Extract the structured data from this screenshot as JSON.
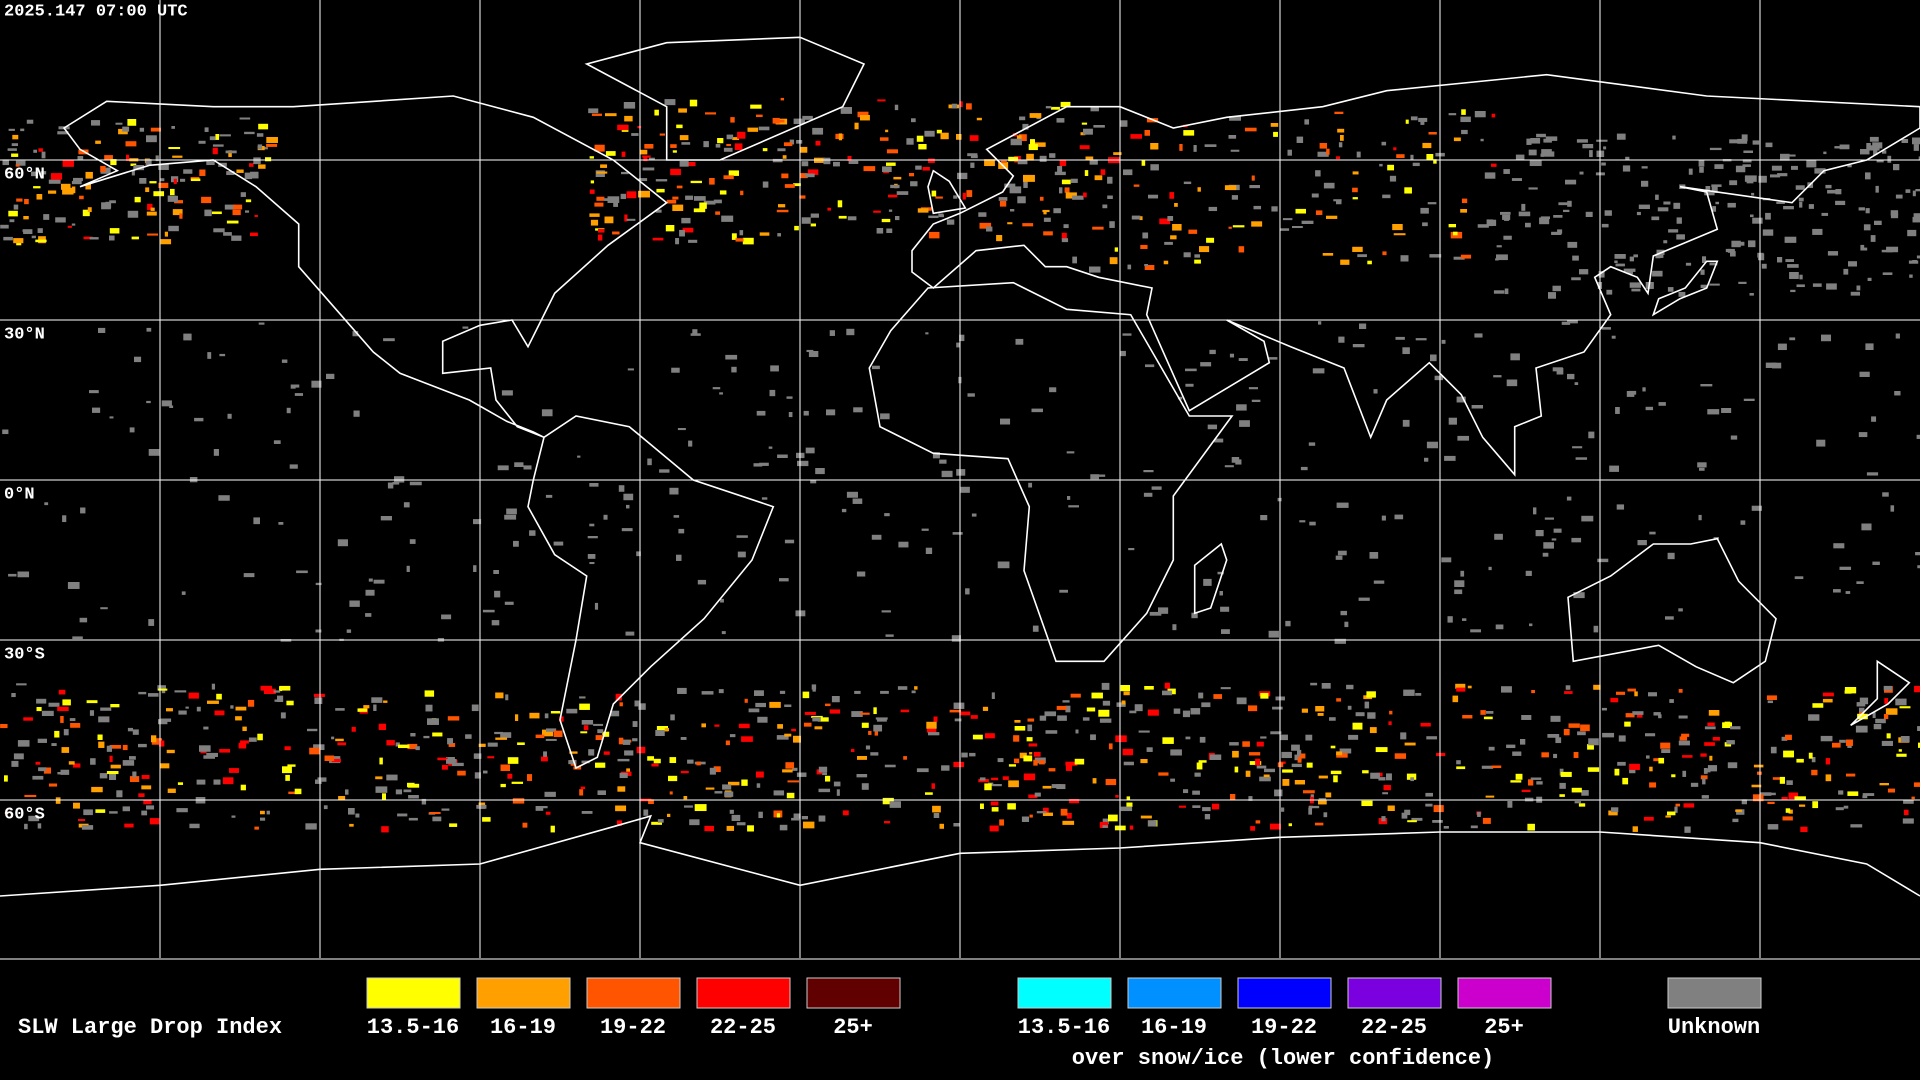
{
  "header": {
    "timestamp": "2025.147 07:00 UTC"
  },
  "map": {
    "lat_labels": [
      "60°N",
      "30°N",
      "0°N",
      "30°S",
      "60°S"
    ]
  },
  "legend": {
    "title": "SLW Large Drop Index",
    "items": [
      {
        "label": "13.5-16",
        "color": "#ffff00"
      },
      {
        "label": "16-19",
        "color": "#ffa000"
      },
      {
        "label": "19-22",
        "color": "#ff5500"
      },
      {
        "label": "22-25",
        "color": "#ff0000"
      },
      {
        "label": "25+",
        "color": "#600000"
      }
    ],
    "snow_ice_items": [
      {
        "label": "13.5-16",
        "color": "#00ffff"
      },
      {
        "label": "16-19",
        "color": "#0090ff"
      },
      {
        "label": "19-22",
        "color": "#0000ff"
      },
      {
        "label": "22-25",
        "color": "#7a00e0"
      },
      {
        "label": "25+",
        "color": "#cc00cc"
      }
    ],
    "snow_ice_note": "over snow/ice (lower confidence)",
    "unknown": {
      "label": "Unknown",
      "color": "#808080"
    }
  }
}
